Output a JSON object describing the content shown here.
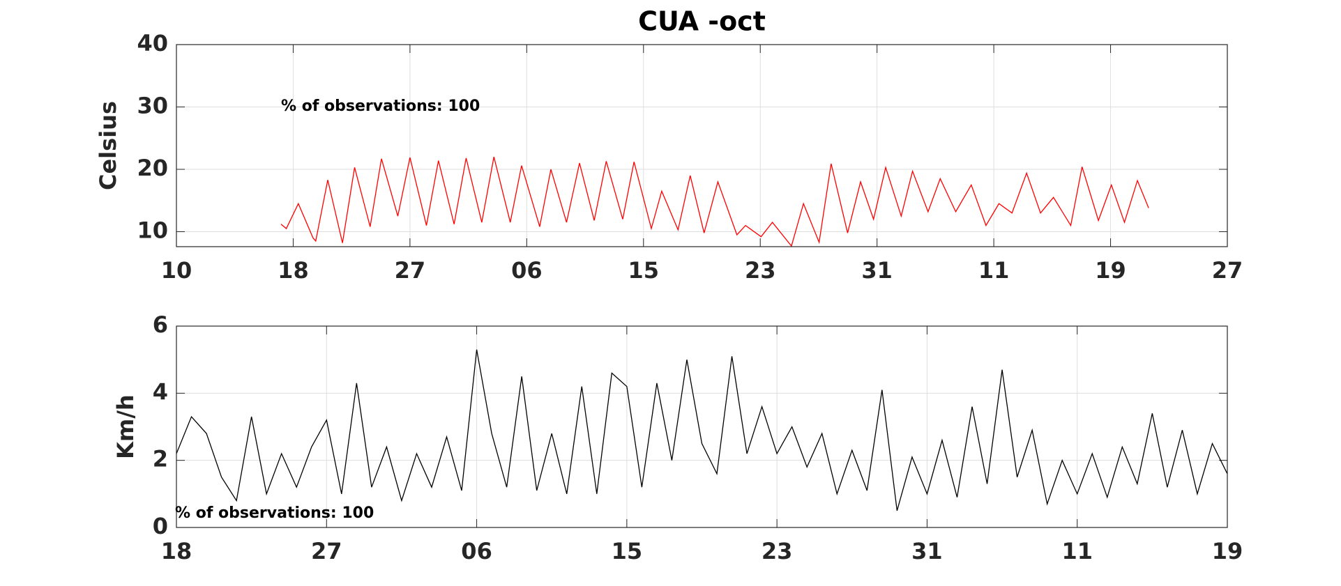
{
  "chart_data": [
    {
      "type": "line",
      "title": "CUA -oct",
      "ylabel": "Celsius",
      "annotation": "% of observations: 100",
      "xlim": [
        0,
        9
      ],
      "xticks": [
        {
          "value": 0,
          "label": "10"
        },
        {
          "value": 1,
          "label": "18"
        },
        {
          "value": 2,
          "label": "27"
        },
        {
          "value": 3,
          "label": "06"
        },
        {
          "value": 4,
          "label": "15"
        },
        {
          "value": 5,
          "label": "23"
        },
        {
          "value": 6,
          "label": "31"
        },
        {
          "value": 7,
          "label": "11"
        },
        {
          "value": 8,
          "label": "19"
        },
        {
          "value": 9,
          "label": "27"
        }
      ],
      "ylim": [
        7.6,
        40
      ],
      "yticks": [
        10,
        20,
        30,
        40
      ],
      "grid": true,
      "series": [
        {
          "color": "#ff0000",
          "x": [
            0.896,
            0.941,
            1.044,
            1.17,
            1.193,
            1.296,
            1.422,
            1.526,
            1.659,
            1.756,
            1.896,
            2.0,
            2.141,
            2.244,
            2.378,
            2.481,
            2.615,
            2.719,
            2.859,
            2.956,
            3.111,
            3.207,
            3.341,
            3.452,
            3.578,
            3.681,
            3.822,
            3.919,
            4.067,
            4.156,
            4.296,
            4.4,
            4.519,
            4.637,
            4.8,
            4.874,
            5.007,
            5.104,
            5.267,
            5.37,
            5.504,
            5.607,
            5.748,
            5.859,
            5.97,
            6.074,
            6.207,
            6.304,
            6.437,
            6.541,
            6.674,
            6.807,
            6.933,
            7.044,
            7.156,
            7.281,
            7.4,
            7.511,
            7.659,
            7.756,
            7.896,
            8.007,
            8.119,
            8.23,
            8.326
          ],
          "values": [
            11.2,
            10.5,
            14.5,
            9,
            8.5,
            18.3,
            8.2,
            20.3,
            10.8,
            21.7,
            12.5,
            21.9,
            11,
            21.4,
            11.2,
            21.8,
            11.5,
            22,
            11.5,
            20.6,
            10.8,
            20,
            11.5,
            21,
            11.8,
            21.3,
            12,
            21.2,
            10.5,
            16.5,
            10.3,
            19,
            9.8,
            18,
            9.5,
            11,
            9.2,
            11.5,
            7.7,
            14.5,
            8.3,
            20.9,
            9.8,
            18,
            12,
            20.3,
            12.5,
            19.7,
            13.2,
            18.5,
            13.2,
            17.5,
            11,
            14.5,
            13,
            19.4,
            13,
            15.5,
            11,
            20.4,
            11.8,
            17.5,
            11.5,
            18.2,
            13.8
          ]
        }
      ]
    },
    {
      "type": "line",
      "ylabel": "Km/h",
      "annotation": "% of observations: 100",
      "xlim": [
        0,
        7
      ],
      "xticks": [
        {
          "value": 0,
          "label": "18"
        },
        {
          "value": 1,
          "label": "27"
        },
        {
          "value": 2,
          "label": "06"
        },
        {
          "value": 3,
          "label": "15"
        },
        {
          "value": 4,
          "label": "23"
        },
        {
          "value": 5,
          "label": "31"
        },
        {
          "value": 6,
          "label": "11"
        },
        {
          "value": 7,
          "label": "19"
        }
      ],
      "ylim": [
        0,
        6
      ],
      "yticks": [
        0,
        2,
        4,
        6
      ],
      "grid": true,
      "series": [
        {
          "color": "#000000",
          "x": [
            0,
            0.1,
            0.2,
            0.3,
            0.4,
            0.5,
            0.6,
            0.7,
            0.8,
            0.9,
            1.0,
            1.1,
            1.2,
            1.3,
            1.4,
            1.5,
            1.6,
            1.7,
            1.8,
            1.9,
            2.0,
            2.1,
            2.2,
            2.3,
            2.4,
            2.5,
            2.6,
            2.7,
            2.8,
            2.9,
            3.0,
            3.1,
            3.2,
            3.3,
            3.4,
            3.5,
            3.6,
            3.7,
            3.8,
            3.9,
            4.0,
            4.1,
            4.2,
            4.3,
            4.4,
            4.5,
            4.6,
            4.7,
            4.8,
            4.9,
            5.0,
            5.1,
            5.2,
            5.3,
            5.4,
            5.5,
            5.6,
            5.7,
            5.8,
            5.9,
            6.0,
            6.1,
            6.2,
            6.3,
            6.4,
            6.5,
            6.6,
            6.7,
            6.8,
            6.9,
            7.0
          ],
          "values": [
            2.2,
            3.3,
            2.8,
            1.5,
            0.8,
            3.3,
            1.0,
            2.2,
            1.2,
            2.4,
            3.2,
            1.0,
            4.3,
            1.2,
            2.4,
            0.8,
            2.2,
            1.2,
            2.7,
            1.1,
            5.3,
            2.8,
            1.2,
            4.5,
            1.1,
            2.8,
            1.0,
            4.2,
            1.0,
            4.6,
            4.2,
            1.2,
            4.3,
            2.0,
            5.0,
            2.5,
            1.6,
            5.1,
            2.2,
            3.6,
            2.2,
            3.0,
            1.8,
            2.8,
            1.0,
            2.3,
            1.1,
            4.1,
            0.5,
            2.1,
            1.0,
            2.6,
            0.9,
            3.6,
            1.3,
            4.7,
            1.5,
            2.9,
            0.7,
            2.0,
            1.0,
            2.2,
            0.9,
            2.4,
            1.3,
            3.4,
            1.2,
            2.9,
            1.0,
            2.5,
            1.6
          ]
        }
      ]
    }
  ]
}
